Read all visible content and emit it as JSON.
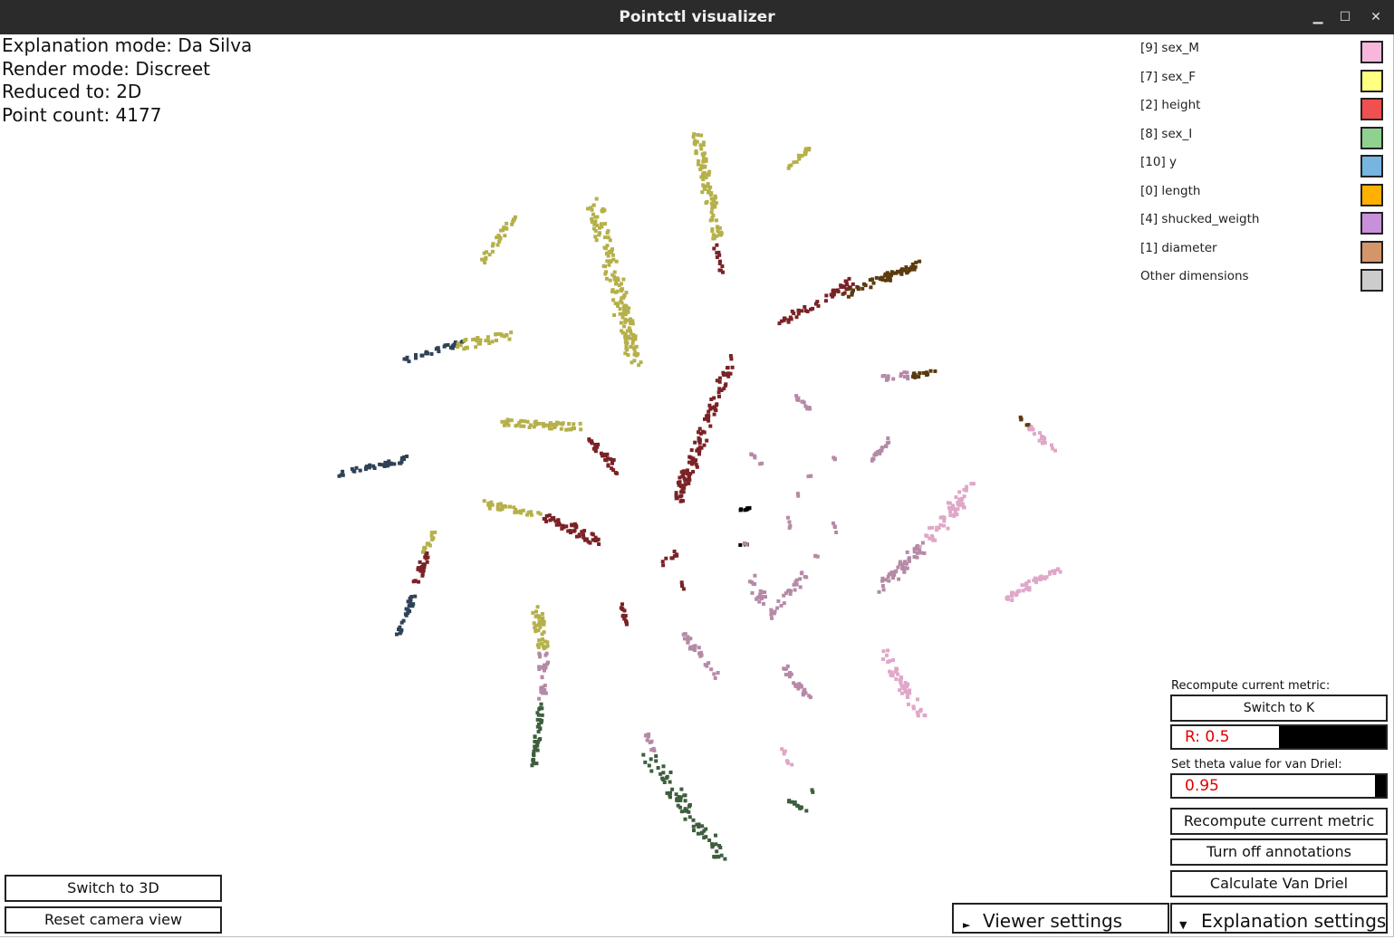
{
  "window": {
    "title": "Pointctl visualizer",
    "minimize_glyph": "▁",
    "maximize_glyph": "☐",
    "close_glyph": "✕"
  },
  "info": {
    "explanation_mode": "Explanation mode: Da Silva",
    "render_mode": "Render mode: Discreet",
    "reduced_to": "Reduced to: 2D",
    "point_count": "Point count: 4177"
  },
  "legend": [
    {
      "label": "[9] sex_M",
      "color": "#f7b6dc"
    },
    {
      "label": "[7] sex_F",
      "color": "#ffff80"
    },
    {
      "label": "[2] height",
      "color": "#f05050"
    },
    {
      "label": "[8] sex_I",
      "color": "#8fd18f"
    },
    {
      "label": "[10] y",
      "color": "#78b4e0"
    },
    {
      "label": "[0] length",
      "color": "#ffb000"
    },
    {
      "label": "[4] shucked_weigth",
      "color": "#c890d8"
    },
    {
      "label": "[1] diameter",
      "color": "#d4956a"
    },
    {
      "label": "Other dimensions",
      "color": "#cccccc"
    }
  ],
  "metric_panel": {
    "recompute_label": "Recompute current metric:",
    "switch_button": "Switch to K",
    "r_slider": {
      "text": "R: 0.5",
      "value": 0.5
    },
    "theta_label": "Set theta value for van Driel:",
    "theta_slider": {
      "text": "0.95",
      "value": 0.95
    },
    "recompute_button": "Recompute current metric",
    "annotations_button": "Turn off annotations",
    "van_driel_button": "Calculate Van Driel"
  },
  "bottom_left": {
    "switch_3d": "Switch to 3D",
    "reset_camera": "Reset camera view"
  },
  "tabs": {
    "viewer_settings": "Viewer settings",
    "viewer_icon": "►",
    "explanation_settings": "Explanation settings",
    "explanation_icon": "▼"
  },
  "cluster_colors": {
    "olive": "#b5b04a",
    "darkred": "#7a2226",
    "navy": "#2f4256",
    "mauve": "#b58aa6",
    "pink": "#e0a7c8",
    "green": "#3e5e3e",
    "brown": "#5a3a0e",
    "black": "#000000"
  }
}
